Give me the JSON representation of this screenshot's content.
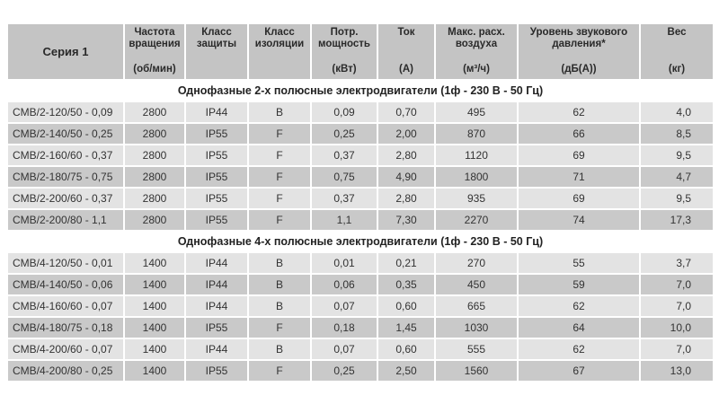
{
  "header": {
    "columns": [
      {
        "title": "Серия 1",
        "unit": ""
      },
      {
        "title": "Частота вращения",
        "unit": "(об/мин)"
      },
      {
        "title": "Класс защиты",
        "unit": ""
      },
      {
        "title": "Класс изоляции",
        "unit": ""
      },
      {
        "title": "Потр. мощность",
        "unit": "(кВт)"
      },
      {
        "title": "Ток",
        "unit": "(А)"
      },
      {
        "title": "Макс. расх. воздуха",
        "unit": "(м³/ч)"
      },
      {
        "title": "Уровень звукового давления*",
        "unit": "(дБ(А))"
      },
      {
        "title": "Вес",
        "unit": "(кг)"
      }
    ]
  },
  "sections": [
    {
      "title": "Однофазные 2-х полюсные электродвигатели (1ф - 230 В - 50 Гц)",
      "rows": [
        [
          "CMB/2-120/50 - 0,09",
          "2800",
          "IP44",
          "B",
          "0,09",
          "0,70",
          "495",
          "62",
          "4,0"
        ],
        [
          "CMB/2-140/50 - 0,25",
          "2800",
          "IP55",
          "F",
          "0,25",
          "2,00",
          "870",
          "66",
          "8,5"
        ],
        [
          "CMB/2-160/60 - 0,37",
          "2800",
          "IP55",
          "F",
          "0,37",
          "2,80",
          "1120",
          "69",
          "9,5"
        ],
        [
          "CMB/2-180/75 - 0,75",
          "2800",
          "IP55",
          "F",
          "0,75",
          "4,90",
          "1800",
          "71",
          "4,7"
        ],
        [
          "CMB/2-200/60 - 0,37",
          "2800",
          "IP55",
          "F",
          "0,37",
          "2,80",
          "935",
          "69",
          "9,5"
        ],
        [
          "CMB/2-200/80 - 1,1",
          "2800",
          "IP55",
          "F",
          "1,1",
          "7,30",
          "2270",
          "74",
          "17,3"
        ]
      ]
    },
    {
      "title": "Однофазные 4-х полюсные электродвигатели (1ф - 230 В - 50 Гц)",
      "rows": [
        [
          "CMB/4-120/50 - 0,01",
          "1400",
          "IP44",
          "B",
          "0,01",
          "0,21",
          "270",
          "55",
          "3,7"
        ],
        [
          "CMB/4-140/50 - 0,06",
          "1400",
          "IP44",
          "B",
          "0,06",
          "0,35",
          "450",
          "59",
          "7,0"
        ],
        [
          "CMB/4-160/60 - 0,07",
          "1400",
          "IP44",
          "B",
          "0,07",
          "0,60",
          "665",
          "62",
          "7,0"
        ],
        [
          "CMB/4-180/75 - 0,18",
          "1400",
          "IP55",
          "F",
          "0,18",
          "1,45",
          "1030",
          "64",
          "10,0"
        ],
        [
          "CMB/4-200/60 - 0,07",
          "1400",
          "IP44",
          "B",
          "0,07",
          "0,60",
          "555",
          "62",
          "7,0"
        ],
        [
          "CMB/4-200/80 - 0,25",
          "1400",
          "IP55",
          "F",
          "0,25",
          "2,50",
          "1560",
          "67",
          "13,0"
        ]
      ]
    }
  ]
}
